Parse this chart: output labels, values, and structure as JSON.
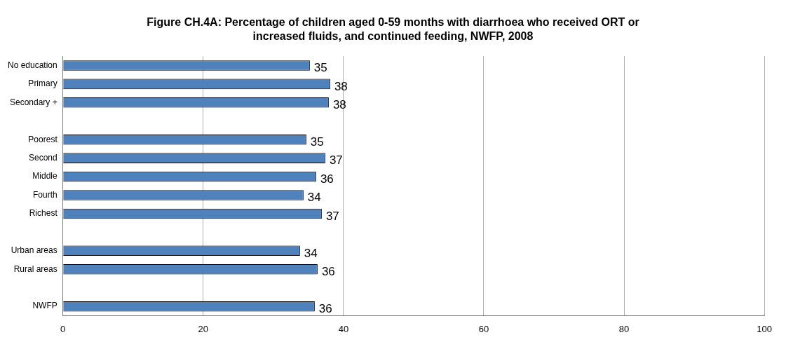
{
  "chart_data": {
    "type": "bar",
    "orientation": "horizontal",
    "title": "Figure CH.4A: Percentage of children aged 0-59 months with diarrhoea who received ORT or increased fluids, and continued feeding, NWFP, 2008",
    "categories": [
      "No education",
      "Primary",
      "Secondary +",
      null,
      "Poorest",
      "Second",
      "Middle",
      "Fourth",
      "Richest",
      null,
      "Urban areas",
      "Rural areas",
      null,
      "NWFP"
    ],
    "values": [
      35.2,
      38.1,
      37.9,
      null,
      34.7,
      37.4,
      36.1,
      34.3,
      36.9,
      null,
      33.8,
      36.3,
      null,
      35.9
    ],
    "value_labels": [
      "35",
      "38",
      "38",
      null,
      "35",
      "37",
      "36",
      "34",
      "37",
      null,
      "34",
      "36",
      null,
      "36"
    ],
    "color": "#4f81bd",
    "xlim": [
      0,
      100
    ],
    "xticks": [
      0,
      20,
      40,
      60,
      80,
      100
    ],
    "grid": "x"
  }
}
